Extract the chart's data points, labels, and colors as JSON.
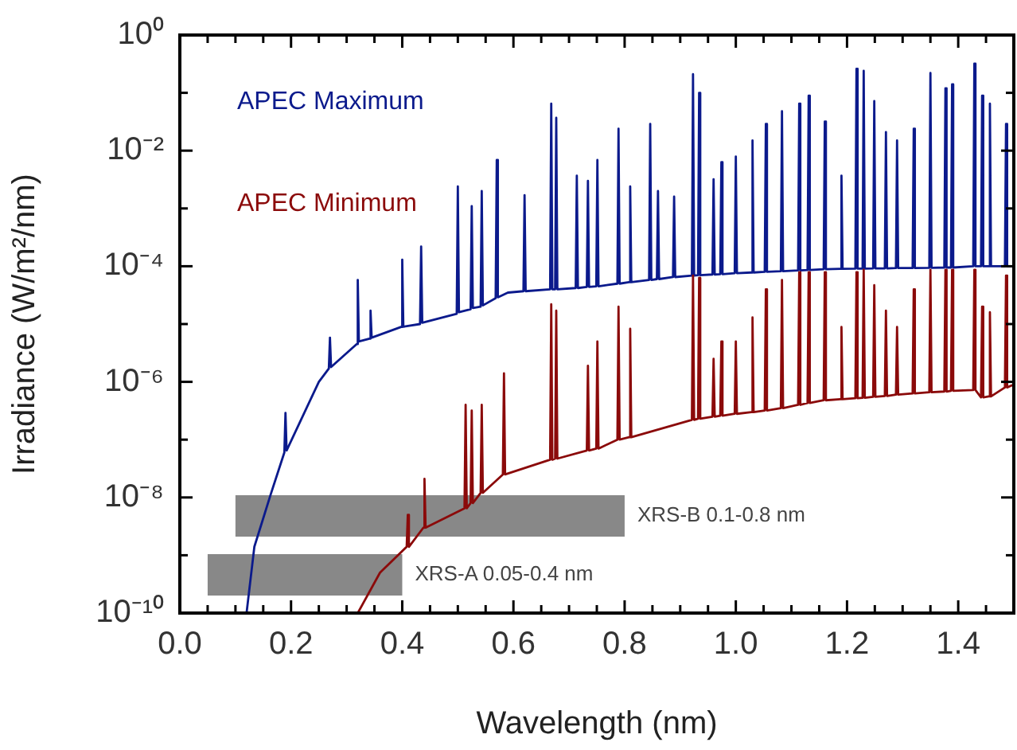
{
  "chart_data": {
    "type": "line",
    "xlabel": "Wavelength (nm)",
    "ylabel": "Irradiance (W/m²/nm)",
    "log": "y",
    "grid": false,
    "marker": "none",
    "line_style": "solid",
    "xlim": [
      0,
      1.5
    ],
    "ylim": [
      1e-10,
      1
    ],
    "xticks": [
      {
        "value": 0,
        "label": "0.0"
      },
      {
        "value": 0.05,
        "label": null
      },
      {
        "value": 0.1,
        "label": null
      },
      {
        "value": 0.15,
        "label": null
      },
      {
        "value": 0.2,
        "label": "0.2"
      },
      {
        "value": 0.25,
        "label": null
      },
      {
        "value": 0.3,
        "label": null
      },
      {
        "value": 0.35,
        "label": null
      },
      {
        "value": 0.4,
        "label": "0.4"
      },
      {
        "value": 0.45,
        "label": null
      },
      {
        "value": 0.5,
        "label": null
      },
      {
        "value": 0.55,
        "label": null
      },
      {
        "value": 0.6,
        "label": "0.6"
      },
      {
        "value": 0.65,
        "label": null
      },
      {
        "value": 0.7,
        "label": null
      },
      {
        "value": 0.75,
        "label": null
      },
      {
        "value": 0.8,
        "label": "0.8"
      },
      {
        "value": 0.85,
        "label": null
      },
      {
        "value": 0.9,
        "label": null
      },
      {
        "value": 0.95,
        "label": null
      },
      {
        "value": 1.0,
        "label": "1.0"
      },
      {
        "value": 1.05,
        "label": null
      },
      {
        "value": 1.1,
        "label": null
      },
      {
        "value": 1.15,
        "label": null
      },
      {
        "value": 1.2,
        "label": "1.2"
      },
      {
        "value": 1.25,
        "label": null
      },
      {
        "value": 1.3,
        "label": null
      },
      {
        "value": 1.35,
        "label": null
      },
      {
        "value": 1.4,
        "label": "1.4"
      },
      {
        "value": 1.45,
        "label": null
      }
    ],
    "yticks": [
      {
        "value": 1e-10,
        "label": "10⁻¹⁰"
      },
      {
        "value": 1e-09,
        "label": null
      },
      {
        "value": 1e-08,
        "label": "10⁻⁸"
      },
      {
        "value": 1e-07,
        "label": null
      },
      {
        "value": 1e-06,
        "label": "10⁻⁶"
      },
      {
        "value": 1e-05,
        "label": null
      },
      {
        "value": 0.0001,
        "label": "10⁻⁴"
      },
      {
        "value": 0.001,
        "label": null
      },
      {
        "value": 0.01,
        "label": "10⁻²"
      },
      {
        "value": 0.1,
        "label": null
      },
      {
        "value": 1,
        "label": "10⁰"
      }
    ],
    "bands": [
      {
        "axis": "x",
        "from": 0.1,
        "to": 0.8,
        "label": "XRS-B 0.1-0.8 nm",
        "color": "#888888"
      },
      {
        "axis": "x",
        "from": 0.05,
        "to": 0.4,
        "label": "XRS-A 0.05-0.4 nm",
        "color": "#888888"
      }
    ],
    "series": [
      {
        "name": "APEC Maximum",
        "color": "#0b1a8c",
        "x": [
          0.12,
          0.134,
          0.163,
          0.188,
          0.19,
          0.192,
          0.25,
          0.268,
          0.27,
          0.272,
          0.318,
          0.32,
          0.322,
          0.341,
          0.343,
          0.345,
          0.398,
          0.4,
          0.402,
          0.432,
          0.434,
          0.436,
          0.498,
          0.5,
          0.502,
          0.523,
          0.525,
          0.527,
          0.541,
          0.543,
          0.545,
          0.568,
          0.57,
          0.572,
          0.59,
          0.618,
          0.62,
          0.622,
          0.666,
          0.668,
          0.67,
          0.675,
          0.677,
          0.679,
          0.712,
          0.714,
          0.716,
          0.732,
          0.734,
          0.736,
          0.749,
          0.751,
          0.753,
          0.787,
          0.789,
          0.791,
          0.808,
          0.81,
          0.812,
          0.844,
          0.846,
          0.848,
          0.858,
          0.86,
          0.862,
          0.887,
          0.889,
          0.891,
          0.921,
          0.923,
          0.925,
          0.932,
          0.934,
          0.936,
          0.958,
          0.96,
          0.962,
          0.972,
          0.974,
          0.976,
          0.998,
          1.0,
          1.002,
          1.028,
          1.03,
          1.032,
          1.052,
          1.054,
          1.056,
          1.081,
          1.083,
          1.085,
          1.112,
          1.114,
          1.116,
          1.129,
          1.131,
          1.133,
          1.158,
          1.16,
          1.162,
          1.188,
          1.19,
          1.192,
          1.215,
          1.217,
          1.219,
          1.228,
          1.23,
          1.232,
          1.247,
          1.249,
          1.251,
          1.268,
          1.27,
          1.272,
          1.288,
          1.29,
          1.292,
          1.318,
          1.32,
          1.322,
          1.348,
          1.35,
          1.352,
          1.375,
          1.377,
          1.379,
          1.387,
          1.389,
          1.391,
          1.427,
          1.429,
          1.431,
          1.441,
          1.443,
          1.445,
          1.455,
          1.457,
          1.459,
          1.484,
          1.486,
          1.488,
          1.5
        ],
        "values": [
          1e-10,
          1.4e-09,
          1.1e-08,
          6e-08,
          2.9e-07,
          6.5e-08,
          1e-06,
          1.7e-06,
          5.8e-06,
          1.8e-06,
          4.5e-06,
          5.8e-05,
          5e-06,
          5.6e-06,
          1.7e-05,
          5.8e-06,
          8.9e-06,
          0.00013,
          9e-06,
          1e-05,
          0.00022,
          1.05e-05,
          1.5e-05,
          0.0024,
          1.6e-05,
          1.8e-05,
          0.0011,
          1.9e-05,
          2e-05,
          0.002,
          2.1e-05,
          2.8e-05,
          0.0069,
          2.9e-05,
          3.5e-05,
          3.7e-05,
          0.0017,
          3.7e-05,
          4e-05,
          0.065,
          4e-05,
          4e-05,
          0.037,
          4e-05,
          4.2e-05,
          0.0037,
          4.2e-05,
          4.4e-05,
          0.003,
          4.4e-05,
          4.5e-05,
          0.0069,
          4.5e-05,
          5e-05,
          0.024,
          5e-05,
          5.3e-05,
          0.0024,
          5.3e-05,
          5.8e-05,
          0.029,
          5.8e-05,
          6e-05,
          0.002,
          6e-05,
          6.5e-05,
          0.0016,
          6.5e-05,
          6.9e-05,
          0.21,
          6.9e-05,
          7e-05,
          0.1,
          7e-05,
          7.2e-05,
          0.0032,
          7.2e-05,
          7.3e-05,
          0.0063,
          7.3e-05,
          7.6e-05,
          0.0079,
          7.6e-05,
          7.8e-05,
          0.015,
          7.8e-05,
          8e-05,
          0.029,
          8e-05,
          8.2e-05,
          0.048,
          8.2e-05,
          8.5e-05,
          0.065,
          8.5e-05,
          8.6e-05,
          0.089,
          8.6e-05,
          8.9e-05,
          0.032,
          8.9e-05,
          9e-05,
          0.0037,
          9e-05,
          9.1e-05,
          0.26,
          9.1e-05,
          9.1e-05,
          0.24,
          9.1e-05,
          9.2e-05,
          0.072,
          9.2e-05,
          9.2e-05,
          0.021,
          9.2e-05,
          9.3e-05,
          0.015,
          9.3e-05,
          9.3e-05,
          0.024,
          9.3e-05,
          9.4e-05,
          0.22,
          9.4e-05,
          9.5e-05,
          0.12,
          9.5e-05,
          9.5e-05,
          0.14,
          9.5e-05,
          0.0001,
          0.32,
          0.0001,
          0.0001,
          0.089,
          0.0001,
          0.0001,
          0.065,
          0.0001,
          0.0001,
          0.029,
          0.0001,
          0.0001
        ]
      },
      {
        "name": "APEC Minimum",
        "color": "#8b0a0a",
        "x": [
          0.32,
          0.36,
          0.408,
          0.41,
          0.412,
          0.438,
          0.44,
          0.442,
          0.512,
          0.514,
          0.516,
          0.523,
          0.525,
          0.527,
          0.541,
          0.543,
          0.545,
          0.581,
          0.583,
          0.585,
          0.666,
          0.668,
          0.67,
          0.675,
          0.677,
          0.679,
          0.732,
          0.734,
          0.736,
          0.749,
          0.751,
          0.753,
          0.787,
          0.789,
          0.791,
          0.808,
          0.81,
          0.812,
          0.921,
          0.923,
          0.925,
          0.932,
          0.934,
          0.936,
          0.958,
          0.96,
          0.962,
          0.972,
          0.974,
          0.976,
          0.998,
          1.0,
          1.002,
          1.028,
          1.03,
          1.032,
          1.052,
          1.054,
          1.056,
          1.081,
          1.083,
          1.085,
          1.112,
          1.114,
          1.116,
          1.129,
          1.131,
          1.133,
          1.158,
          1.16,
          1.162,
          1.188,
          1.19,
          1.192,
          1.215,
          1.217,
          1.219,
          1.228,
          1.23,
          1.232,
          1.247,
          1.249,
          1.251,
          1.268,
          1.27,
          1.272,
          1.288,
          1.29,
          1.292,
          1.318,
          1.32,
          1.322,
          1.348,
          1.35,
          1.352,
          1.375,
          1.377,
          1.379,
          1.387,
          1.389,
          1.391,
          1.427,
          1.429,
          1.431,
          1.441,
          1.443,
          1.445,
          1.455,
          1.457,
          1.459,
          1.484,
          1.486,
          1.488,
          1.5
        ],
        "values": [
          1e-10,
          5e-10,
          1.4e-09,
          5e-09,
          1.4e-09,
          3e-09,
          2.1e-08,
          3e-09,
          6.5e-09,
          4e-07,
          6.5e-09,
          8e-09,
          3.2e-07,
          8e-09,
          1.2e-08,
          4e-07,
          1.2e-08,
          2.5e-08,
          1.4e-06,
          2.5e-08,
          4.5e-08,
          2.2e-05,
          4.5e-08,
          4.7e-08,
          1.7e-05,
          4.7e-08,
          6.5e-08,
          1.9e-06,
          6.5e-08,
          7e-08,
          5e-06,
          7e-08,
          1e-07,
          2e-05,
          1e-07,
          1.1e-07,
          8.3e-06,
          1.1e-07,
          2.2e-07,
          6.9e-05,
          2.2e-07,
          2.3e-07,
          6.3e-05,
          2.3e-07,
          2.5e-07,
          2.5e-06,
          2.5e-07,
          2.6e-07,
          5e-06,
          2.6e-07,
          2.8e-07,
          5e-06,
          2.8e-07,
          3e-07,
          1.3e-05,
          3e-07,
          3.2e-07,
          4e-05,
          3.2e-07,
          3.5e-07,
          5.8e-05,
          3.5e-07,
          4e-07,
          7.9e-05,
          4e-07,
          4.3e-07,
          7.9e-05,
          4.3e-07,
          4.8e-07,
          7.9e-05,
          4.8e-07,
          5e-07,
          8.9e-06,
          5e-07,
          5.2e-07,
          7.9e-05,
          5.2e-07,
          5.3e-07,
          8.7e-05,
          5.3e-07,
          5.5e-07,
          4.7e-05,
          5.5e-07,
          5.7e-07,
          1.7e-05,
          5.7e-07,
          6e-07,
          8.9e-06,
          6e-07,
          6.3e-07,
          4e-05,
          6.3e-07,
          6.6e-07,
          8.7e-05,
          6.6e-07,
          6.8e-07,
          8.7e-05,
          6.8e-07,
          7e-07,
          8.7e-05,
          7e-07,
          7.2e-07,
          8.7e-05,
          7.2e-07,
          5.4e-07,
          2e-05,
          5.4e-07,
          5.6e-07,
          1.6e-05,
          5.6e-07,
          8e-07,
          6.9e-05,
          8e-07,
          9e-07
        ]
      }
    ]
  }
}
